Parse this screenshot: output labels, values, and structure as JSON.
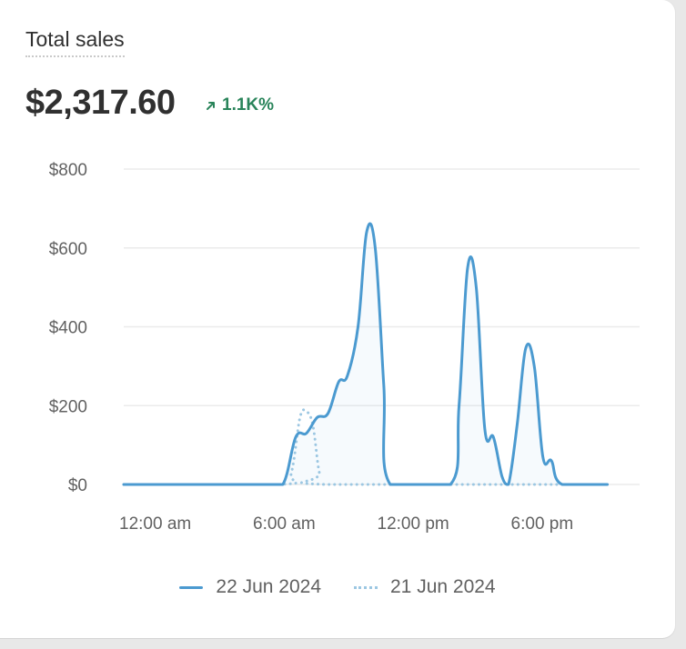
{
  "card": {
    "title": "Total sales",
    "value": "$2,317.60",
    "delta": "1.1K%",
    "delta_icon": "arrow-up-right-icon",
    "colors": {
      "positive": "#29845a",
      "series_current": "#4b9ad0",
      "series_previous": "#9cc7e2",
      "text": "#303030",
      "muted": "#616161",
      "grid": "#ebebeb"
    }
  },
  "legend": {
    "items": [
      {
        "label": "22 Jun 2024",
        "style": "solid"
      },
      {
        "label": "21 Jun 2024",
        "style": "dotted"
      }
    ]
  },
  "chart_data": {
    "type": "line",
    "title": "",
    "xlabel": "",
    "ylabel": "",
    "ylim": [
      0,
      800
    ],
    "xlim": [
      0,
      24
    ],
    "x_ticks": [
      {
        "x": 1,
        "label": "12:00 am"
      },
      {
        "x": 7,
        "label": "6:00 am"
      },
      {
        "x": 13,
        "label": "12:00 pm"
      },
      {
        "x": 19,
        "label": "6:00 pm"
      }
    ],
    "y_ticks": [
      {
        "y": 800,
        "label": "$800"
      },
      {
        "y": 600,
        "label": "$600"
      },
      {
        "y": 400,
        "label": "$400"
      },
      {
        "y": 200,
        "label": "$200"
      },
      {
        "y": 0,
        "label": "$0"
      }
    ],
    "grid": true,
    "legend_position": "bottom",
    "series": [
      {
        "name": "22 Jun 2024",
        "style": "solid",
        "color": "#4b9ad0",
        "points": [
          [
            0,
            0
          ],
          [
            6.5,
            0
          ],
          [
            7.4,
            0
          ],
          [
            8,
            120
          ],
          [
            8.5,
            130
          ],
          [
            9,
            170
          ],
          [
            9.5,
            180
          ],
          [
            10,
            260
          ],
          [
            10.4,
            275
          ],
          [
            10.9,
            400
          ],
          [
            11.3,
            640
          ],
          [
            11.7,
            600
          ],
          [
            12.1,
            250
          ],
          [
            12.4,
            0
          ],
          [
            15.2,
            0
          ],
          [
            15.6,
            200
          ],
          [
            16,
            550
          ],
          [
            16.4,
            500
          ],
          [
            16.8,
            140
          ],
          [
            17.2,
            120
          ],
          [
            17.6,
            20
          ],
          [
            17.9,
            0
          ],
          [
            18.3,
            150
          ],
          [
            18.7,
            345
          ],
          [
            19.1,
            300
          ],
          [
            19.5,
            70
          ],
          [
            19.9,
            60
          ],
          [
            20.4,
            0
          ],
          [
            22.5,
            0
          ]
        ]
      },
      {
        "name": "21 Jun 2024",
        "style": "dotted",
        "color": "#9cc7e2",
        "points": [
          [
            0,
            0
          ],
          [
            7.3,
            0
          ],
          [
            7.8,
            30
          ],
          [
            8.2,
            170
          ],
          [
            8.5,
            185
          ],
          [
            8.8,
            150
          ],
          [
            9.1,
            30
          ],
          [
            9.4,
            0
          ],
          [
            22.5,
            0
          ]
        ]
      }
    ]
  }
}
